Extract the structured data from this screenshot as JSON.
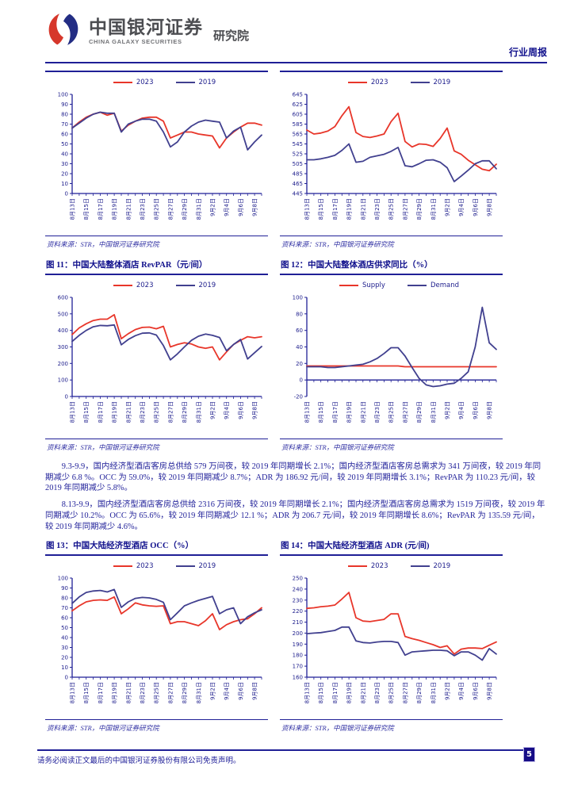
{
  "header": {
    "brand_cn": "中国银河证券",
    "brand_en": "CHINA GALAXY SECURITIES",
    "dept": "研究院",
    "report_type": "行业周报"
  },
  "source_note": "资料来源：STR，中国银河证券研究院",
  "colors": {
    "navy": "#1f1f96",
    "red": "#e8362a",
    "blue": "#41408f",
    "logo_red": "#d6372b",
    "logo_blue": "#232d84"
  },
  "x_axis": {
    "tick_labels": [
      "8月13日",
      "8月15日",
      "8月17日",
      "8月19日",
      "8月21日",
      "8月23日",
      "8月25日",
      "8月27日",
      "8月29日",
      "8月31日",
      "9月2日",
      "9月4日",
      "9月6日",
      "9月8日"
    ]
  },
  "chart_data": [
    {
      "id": "fig09",
      "type": "line",
      "title": "",
      "legend": [
        "2023",
        "2019"
      ],
      "y": {
        "min": 0,
        "max": 100,
        "step": 10
      },
      "series": [
        {
          "name": "2023",
          "color": "red",
          "values": [
            66,
            72,
            77,
            80,
            82,
            79,
            81,
            63,
            69,
            73,
            76,
            77,
            77,
            73,
            56,
            59,
            62,
            62,
            60,
            59,
            58,
            46,
            56,
            62,
            67,
            71,
            71,
            69
          ]
        },
        {
          "name": "2019",
          "color": "blue",
          "values": [
            66,
            71,
            76,
            80,
            82,
            81,
            81,
            62,
            70,
            73,
            75,
            75,
            73,
            62,
            47,
            52,
            62,
            68,
            72,
            74,
            73,
            72,
            56,
            63,
            67,
            44,
            52,
            59
          ]
        }
      ]
    },
    {
      "id": "fig10",
      "type": "line",
      "title": "",
      "legend": [
        "2023",
        "2019"
      ],
      "y": {
        "min": 445,
        "max": 645,
        "step": 20
      },
      "series": [
        {
          "name": "2023",
          "color": "red",
          "values": [
            573,
            565,
            567,
            571,
            580,
            602,
            620,
            568,
            560,
            558,
            561,
            565,
            590,
            607,
            550,
            539,
            545,
            544,
            540,
            556,
            577,
            531,
            524,
            512,
            503,
            494,
            491,
            504
          ]
        },
        {
          "name": "2019",
          "color": "blue",
          "values": [
            513,
            513,
            515,
            518,
            522,
            532,
            545,
            508,
            510,
            518,
            521,
            524,
            530,
            538,
            501,
            499,
            505,
            512,
            513,
            508,
            497,
            469,
            480,
            492,
            505,
            511,
            511,
            495
          ]
        }
      ]
    },
    {
      "id": "fig11",
      "type": "line",
      "title": "图 11：中国大陆整体酒店 RevPAR（元/间）",
      "legend": [
        "2023",
        "2019"
      ],
      "y": {
        "min": 0,
        "max": 600,
        "step": 100
      },
      "series": [
        {
          "name": "2023",
          "color": "red",
          "values": [
            375,
            415,
            440,
            460,
            468,
            468,
            495,
            350,
            380,
            405,
            418,
            420,
            410,
            425,
            300,
            315,
            325,
            318,
            300,
            292,
            300,
            222,
            270,
            315,
            340,
            362,
            355,
            362
          ]
        },
        {
          "name": "2019",
          "color": "blue",
          "values": [
            333,
            370,
            400,
            422,
            430,
            428,
            433,
            313,
            345,
            368,
            383,
            385,
            372,
            308,
            222,
            258,
            300,
            340,
            365,
            378,
            370,
            357,
            277,
            315,
            345,
            227,
            265,
            303
          ]
        }
      ]
    },
    {
      "id": "fig12",
      "type": "line",
      "title": "图 12：中国大陆整体酒店供求同比（%）",
      "legend": [
        "Supply",
        "Demand"
      ],
      "y": {
        "min": -20,
        "max": 100,
        "step": 20
      },
      "baseline": 0,
      "series": [
        {
          "name": "Supply",
          "color": "red",
          "values": [
            17,
            17,
            17,
            17,
            17,
            17,
            17,
            17,
            17,
            17,
            17,
            17,
            17,
            17,
            16,
            16,
            16,
            16,
            16,
            16,
            16,
            16,
            16,
            16,
            16,
            16,
            16,
            16
          ]
        },
        {
          "name": "Demand",
          "color": "blue",
          "values": [
            16,
            16,
            16,
            15,
            15,
            16,
            17,
            18,
            19,
            22,
            26,
            32,
            39,
            39,
            29,
            15,
            2,
            -6,
            -8,
            -7,
            -5,
            -4,
            2,
            10,
            40,
            88,
            45,
            37
          ]
        }
      ]
    },
    {
      "id": "fig13",
      "type": "line",
      "title": "图 13：中国大陆经济型酒店 OCC（%）",
      "legend": [
        "2023",
        "2019"
      ],
      "y": {
        "min": 0,
        "max": 100,
        "step": 10
      },
      "series": [
        {
          "name": "2023",
          "color": "red",
          "values": [
            67,
            72,
            76,
            77.5,
            78,
            77.5,
            81,
            64,
            69,
            75,
            73,
            72,
            71.5,
            72,
            54,
            56,
            56,
            54,
            52,
            57,
            64,
            48,
            53,
            56,
            58,
            59,
            64,
            70
          ]
        },
        {
          "name": "2019",
          "color": "blue",
          "values": [
            74.5,
            81,
            85.5,
            87,
            87.5,
            86,
            88.5,
            70.5,
            76,
            79.5,
            80.5,
            80,
            78.5,
            75.5,
            58,
            65,
            72,
            75,
            77.5,
            79.5,
            81.5,
            64,
            68,
            70,
            54,
            61,
            65,
            68
          ]
        }
      ]
    },
    {
      "id": "fig14",
      "type": "line",
      "title": "图 14：中国大陆经济型酒店 ADR (元/间)",
      "legend": [
        "2023",
        "2019"
      ],
      "y": {
        "min": 160,
        "max": 250,
        "step": 10
      },
      "series": [
        {
          "name": "2023",
          "color": "red",
          "values": [
            222.5,
            223,
            224,
            224.5,
            225.5,
            231,
            237,
            214,
            211,
            210.5,
            211.5,
            212.5,
            217.5,
            217.5,
            197,
            195,
            193.5,
            191.5,
            189.5,
            187,
            188.5,
            181,
            185.5,
            186.5,
            186.5,
            186,
            189,
            192
          ]
        },
        {
          "name": "2019",
          "color": "blue",
          "values": [
            199.5,
            200,
            200.5,
            201.5,
            202.5,
            205.5,
            205.5,
            193,
            191.5,
            191,
            192,
            192.5,
            192.5,
            191.5,
            180,
            183,
            183.5,
            184,
            184.5,
            184.5,
            184,
            179.5,
            183,
            183,
            180,
            175.5,
            186,
            181
          ]
        }
      ]
    }
  ],
  "paragraphs": [
    "9.3-9.9，国内经济型酒店客房总供给 579 万间夜，较 2019 年同期增长 2.1%；国内经济型酒店客房总需求为 341 万间夜，较 2019 年同期减少 6.8 %。OCC 为 59.0%，较 2019 年同期减少 8.7%；ADR 为 186.92 元/间，较 2019 年同期增长 3.1%；RevPAR 为 110.23 元/间，较 2019 年同期减少 5.8%。",
    "8.13-9.9，国内经济型酒店客房总供给 2316 万间夜，较 2019 年同期增长 2.1%；国内经济型酒店客房总需求为 1519 万间夜，较 2019 年同期减少 10.2%。OCC 为 65.6%，较 2019 年同期减少 12.1 %；ADR 为 206.7 元/间，较 2019 年同期增长 8.6%；RevPAR 为 135.59 元/间，较 2019 年同期减少 4.6%。"
  ],
  "footer": {
    "disclaimer": "请务必阅读正文最后的中国银河证券股份有限公司免责声明。",
    "page_number": "5"
  }
}
